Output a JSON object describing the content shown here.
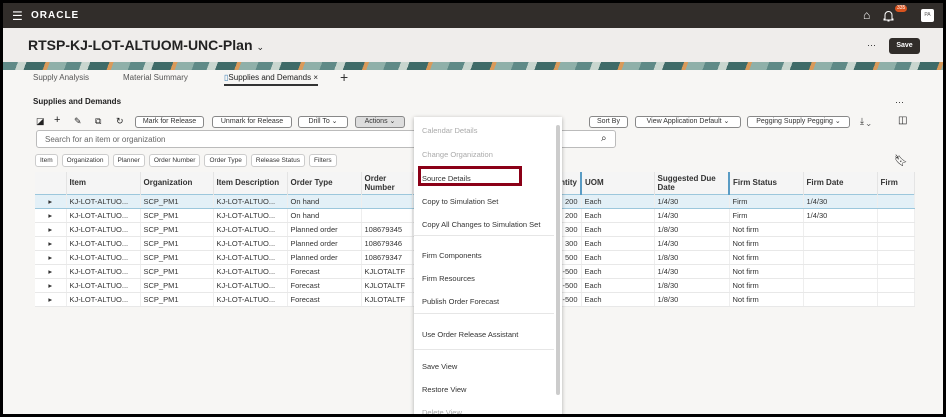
{
  "topbar": {
    "brand": "ORACLE",
    "notification_count": "335",
    "avatar": "PA"
  },
  "header": {
    "title": "RTSP-KJ-LOT-ALTUOM-UNC-Plan",
    "save": "Save",
    "more": "···"
  },
  "tabs": [
    {
      "label": "Supply Analysis"
    },
    {
      "label": "Material Summary"
    },
    {
      "label": "Supplies and Demands",
      "active": true
    }
  ],
  "section": {
    "title": "Supplies and Demands"
  },
  "toolbar": {
    "mark": "Mark for Release",
    "unmark": "Unmark for Release",
    "drill": "Drill To",
    "actions": "Actions",
    "sort": "Sort By",
    "view": "View Application Default",
    "pegging": "Pegging Supply Pegging"
  },
  "search": {
    "placeholder": "Search for an item or organization"
  },
  "filters": [
    "Item",
    "Organization",
    "Planner",
    "Order Number",
    "Order Type",
    "Release Status",
    "Filters"
  ],
  "table": {
    "columns": [
      "Item",
      "Organization",
      "Item Description",
      "Order Type",
      "Order Number",
      "Quantity",
      "UOM",
      "Suggested Due Date",
      "Firm Status",
      "Firm Date",
      "Firm"
    ],
    "rows": [
      [
        "KJ-LOT-ALTUO...",
        "SCP_PM1",
        "KJ-LOT-ALTUO...",
        "On hand",
        "",
        "200",
        "Each",
        "1/4/30",
        "Firm",
        "1/4/30",
        ""
      ],
      [
        "KJ-LOT-ALTUO...",
        "SCP_PM1",
        "KJ-LOT-ALTUO...",
        "On hand",
        "",
        "200",
        "Each",
        "1/4/30",
        "Firm",
        "1/4/30",
        ""
      ],
      [
        "KJ-LOT-ALTUO...",
        "SCP_PM1",
        "KJ-LOT-ALTUO...",
        "Planned order",
        "108679345",
        "300",
        "Each",
        "1/8/30",
        "Not firm",
        "",
        ""
      ],
      [
        "KJ-LOT-ALTUO...",
        "SCP_PM1",
        "KJ-LOT-ALTUO...",
        "Planned order",
        "108679346",
        "300",
        "Each",
        "1/4/30",
        "Not firm",
        "",
        ""
      ],
      [
        "KJ-LOT-ALTUO...",
        "SCP_PM1",
        "KJ-LOT-ALTUO...",
        "Planned order",
        "108679347",
        "500",
        "Each",
        "1/8/30",
        "Not firm",
        "",
        ""
      ],
      [
        "KJ-LOT-ALTUO...",
        "SCP_PM1",
        "KJ-LOT-ALTUO...",
        "Forecast",
        "KJLOTALTF",
        "-500",
        "Each",
        "1/4/30",
        "Not firm",
        "",
        ""
      ],
      [
        "KJ-LOT-ALTUO...",
        "SCP_PM1",
        "KJ-LOT-ALTUO...",
        "Forecast",
        "KJLOTALTF",
        "-500",
        "Each",
        "1/8/30",
        "Not firm",
        "",
        ""
      ],
      [
        "KJ-LOT-ALTUO...",
        "SCP_PM1",
        "KJ-LOT-ALTUO...",
        "Forecast",
        "KJLOTALTF",
        "-500",
        "Each",
        "1/8/30",
        "Not firm",
        "",
        ""
      ]
    ]
  },
  "menu": {
    "items": [
      {
        "label": "Calendar Details",
        "disabled": true
      },
      {
        "label": "Change Organization",
        "disabled": true
      },
      {
        "label": "Source Details",
        "highlighted": true
      },
      {
        "label": "Copy to Simulation Set"
      },
      {
        "label": "Copy All Changes to Simulation Set"
      },
      {
        "label": "Firm Components"
      },
      {
        "label": "Firm Resources"
      },
      {
        "label": "Publish Order Forecast"
      },
      {
        "label": "Use Order Release Assistant"
      },
      {
        "label": "Save View"
      },
      {
        "label": "Restore View"
      },
      {
        "label": "Delete View",
        "disabled": true
      }
    ]
  },
  "colors": {
    "topbar": "#312d2a",
    "highlight_box": "#8b0017",
    "selected_row": "#e3f0f7"
  }
}
